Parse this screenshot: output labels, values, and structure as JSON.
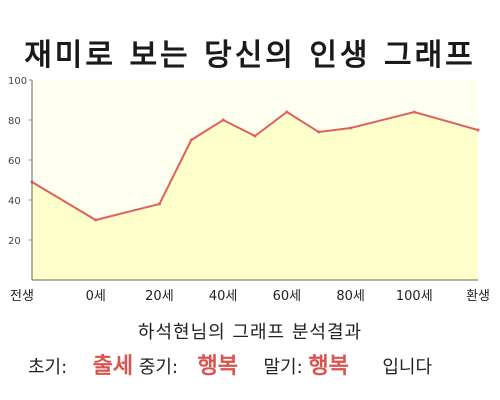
{
  "title": "재미로 보는 당신의 인생 그래프",
  "subtitle": "하석현님의 그래프 분석결과",
  "summary": {
    "early_label": "초기:",
    "early_value": "출세",
    "mid_label": "중기:",
    "mid_value": "행복",
    "late_label": "말기:",
    "late_value": "행복",
    "ending": "입니다"
  },
  "colors": {
    "line": "#e06060",
    "fill": "#ffffcc",
    "accent_text": "#d9534f"
  },
  "chart_data": {
    "type": "area",
    "title": "재미로 보는 당신의 인생 그래프",
    "xlabel": "",
    "ylabel": "",
    "ylim": [
      0,
      100
    ],
    "grid": false,
    "x_tick_labels": [
      "전생",
      "0세",
      "20세",
      "40세",
      "60세",
      "80세",
      "100세",
      "환생"
    ],
    "y_ticks": [
      20,
      40,
      60,
      80,
      100
    ],
    "series": [
      {
        "points": [
          {
            "x": "전생",
            "y": 49
          },
          {
            "x": "0세",
            "y": 30
          },
          {
            "x": "20세",
            "y": 38
          },
          {
            "x": "30세",
            "y": 70
          },
          {
            "x": "40세",
            "y": 80
          },
          {
            "x": "50세",
            "y": 72
          },
          {
            "x": "60세",
            "y": 84
          },
          {
            "x": "70세",
            "y": 74
          },
          {
            "x": "80세",
            "y": 76
          },
          {
            "x": "100세",
            "y": 84
          },
          {
            "x": "환생",
            "y": 75
          }
        ]
      }
    ]
  }
}
